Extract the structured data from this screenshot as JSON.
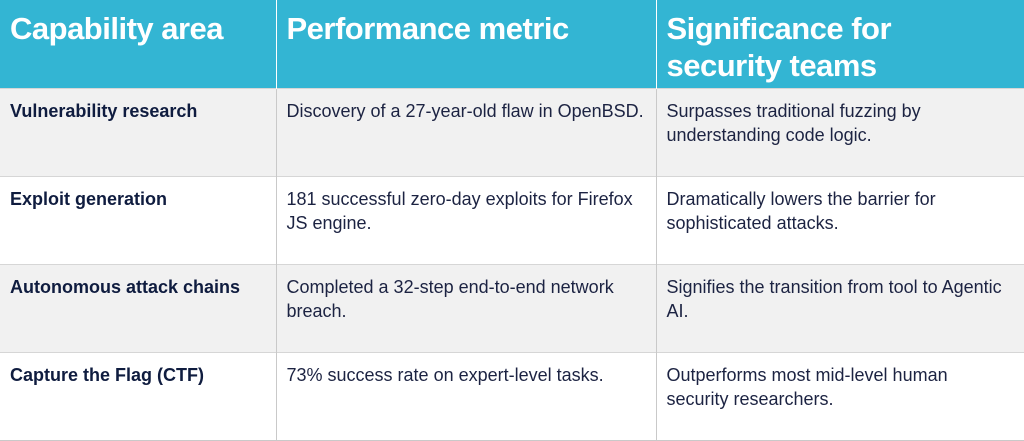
{
  "header": {
    "col1": "Capability area",
    "col2": "Performance metric",
    "col3": "Significance for security teams"
  },
  "rows": [
    {
      "area": "Vulnerability research",
      "metric": "Discovery of a 27-year-old flaw in OpenBSD.",
      "significance": "Surpasses traditional fuzzing by understanding code logic."
    },
    {
      "area": "Exploit generation",
      "metric": "181 successful zero-day exploits for Firefox JS engine.",
      "significance": "Dramatically lowers the barrier for sophisticated attacks."
    },
    {
      "area": "Autonomous attack chains",
      "metric": "Completed a 32-step end-to-end network breach.",
      "significance": "Signifies the transition from tool to Agentic AI."
    },
    {
      "area": "Capture the Flag (CTF)",
      "metric": "73% success rate on expert-level tasks.",
      "significance": "Outperforms most mid-level human security researchers."
    }
  ],
  "colors": {
    "header_bg": "#33b5d3",
    "header_text": "#ffffff",
    "row_alt_bg": "#f1f1f1",
    "body_text": "#1c2342"
  }
}
